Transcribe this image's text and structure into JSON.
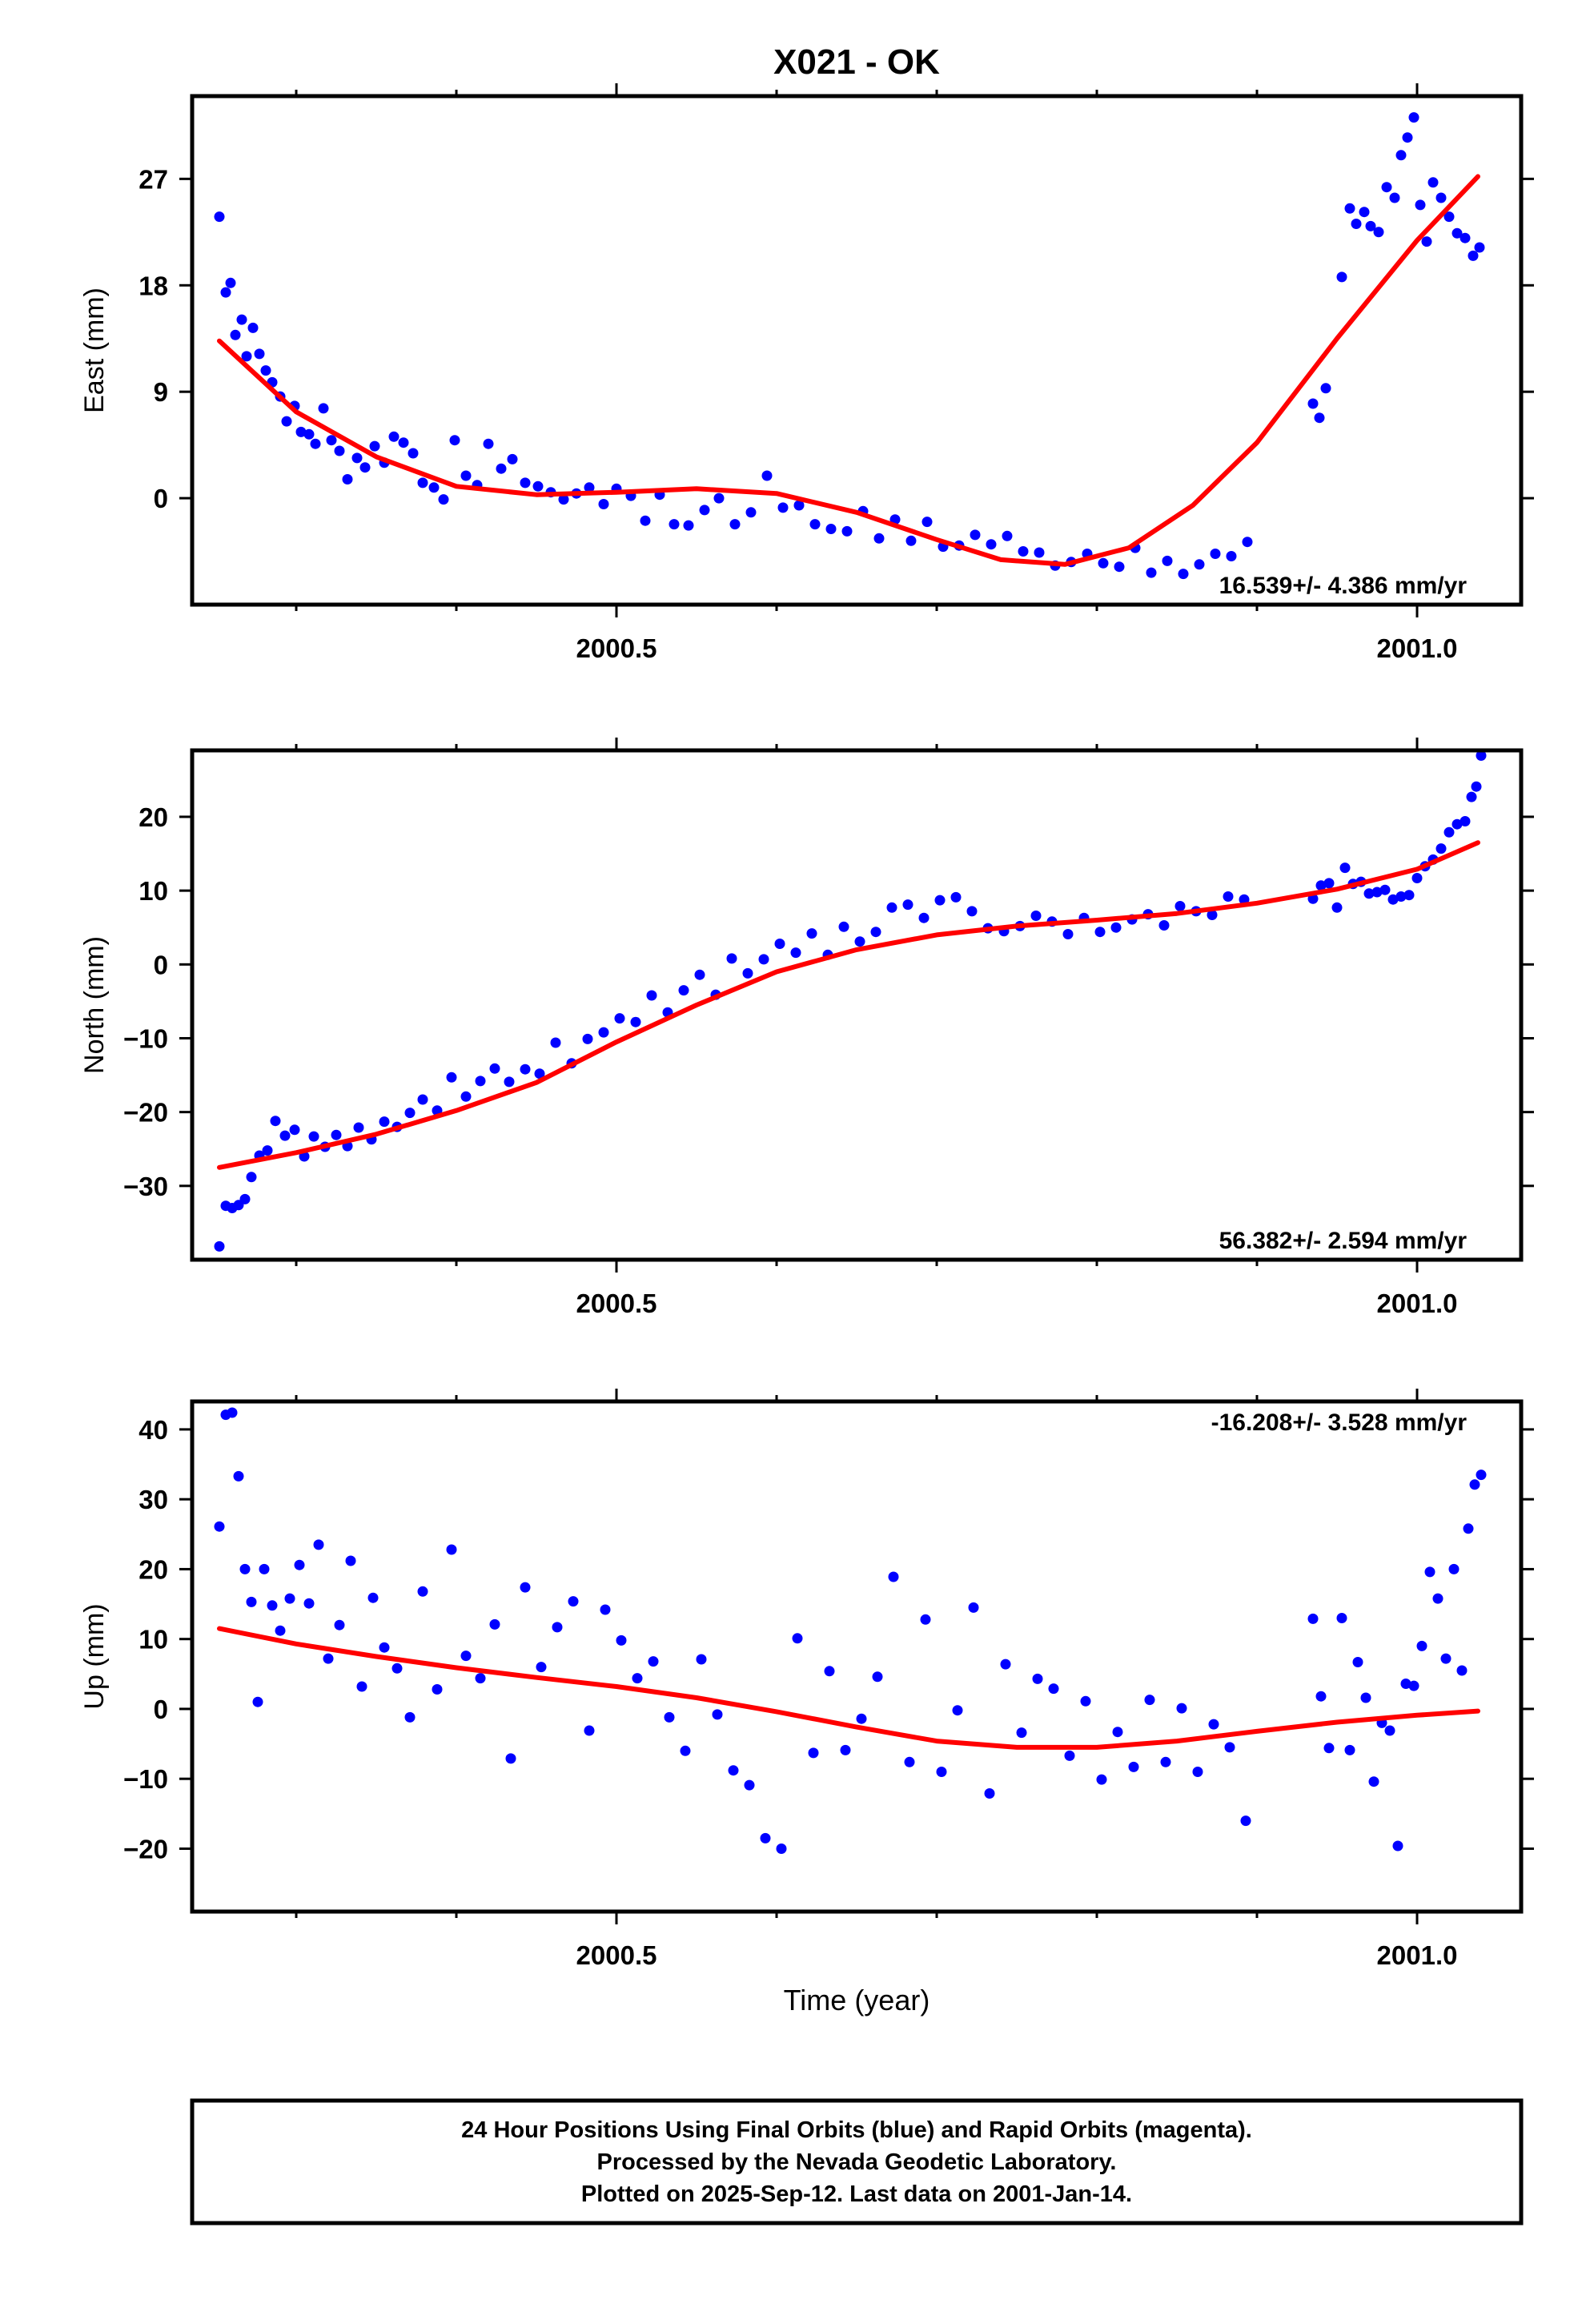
{
  "title": "X021 - OK",
  "xlabel": "Time (year)",
  "footer": [
    "24 Hour Positions Using Final Orbits (blue) and Rapid Orbits (magenta).",
    "Processed by the Nevada Geodetic Laboratory.",
    "Plotted on 2025-Sep-12. Last data on 2001-Jan-14."
  ],
  "colors": {
    "data": "#0000ff",
    "fit": "#ff0000",
    "frame": "#000000"
  },
  "chart_data": [
    {
      "type": "scatter",
      "ylabel": "East (mm)",
      "rate_label": "16.539+/- 4.386 mm/yr",
      "xlim": [
        2000.235,
        2001.065
      ],
      "ylim": [
        -9,
        34
      ],
      "xticks": [
        2000.5,
        2001.0
      ],
      "xtick_labels": [
        "2000.5",
        "2001.0"
      ],
      "yticks": [
        0,
        9,
        18,
        27
      ],
      "ytick_labels": [
        "0",
        "9",
        "18",
        "27"
      ],
      "fit": {
        "x": [
          2000.252,
          2000.3,
          2000.35,
          2000.4,
          2000.45,
          2000.5,
          2000.55,
          2000.6,
          2000.65,
          2000.7,
          2000.74,
          2000.78,
          2000.82,
          2000.86,
          2000.9,
          2000.95,
          2001.0,
          2001.038
        ],
        "y": [
          13.3,
          7.3,
          3.5,
          1.0,
          0.3,
          0.5,
          0.8,
          0.4,
          -1.2,
          -3.5,
          -5.2,
          -5.6,
          -4.2,
          -0.6,
          4.7,
          13.5,
          21.8,
          27.2
        ]
      },
      "points": {
        "x": [
          2000.252,
          2000.256,
          2000.259,
          2000.262,
          2000.266,
          2000.269,
          2000.273,
          2000.277,
          2000.281,
          2000.285,
          2000.29,
          2000.294,
          2000.299,
          2000.303,
          2000.308,
          2000.312,
          2000.317,
          2000.322,
          2000.327,
          2000.332,
          2000.338,
          2000.343,
          2000.349,
          2000.355,
          2000.361,
          2000.367,
          2000.373,
          2000.379,
          2000.386,
          2000.392,
          2000.399,
          2000.406,
          2000.413,
          2000.42,
          2000.428,
          2000.435,
          2000.443,
          2000.451,
          2000.459,
          2000.467,
          2000.475,
          2000.483,
          2000.492,
          2000.5,
          2000.509,
          2000.518,
          2000.527,
          2000.536,
          2000.545,
          2000.555,
          2000.564,
          2000.574,
          2000.584,
          2000.594,
          2000.604,
          2000.614,
          2000.624,
          2000.634,
          2000.644,
          2000.654,
          2000.664,
          2000.674,
          2000.684,
          2000.694,
          2000.704,
          2000.714,
          2000.724,
          2000.734,
          2000.744,
          2000.754,
          2000.764,
          2000.774,
          2000.784,
          2000.794,
          2000.804,
          2000.814,
          2000.824,
          2000.834,
          2000.844,
          2000.854,
          2000.864,
          2000.874,
          2000.884,
          2000.894,
          2000.935,
          2000.939,
          2000.943,
          2000.953,
          2000.958,
          2000.962,
          2000.967,
          2000.971,
          2000.976,
          2000.981,
          2000.986,
          2000.99,
          2000.994,
          2000.998,
          2001.002,
          2001.006,
          2001.01,
          2001.015,
          2001.02,
          2001.025,
          2001.03,
          2001.035,
          2001.039
        ],
        "y": [
          23.8,
          17.4,
          18.2,
          13.8,
          15.1,
          12.0,
          14.4,
          12.2,
          10.8,
          9.8,
          8.6,
          6.5,
          7.8,
          5.6,
          5.4,
          4.6,
          7.6,
          4.9,
          4.0,
          1.6,
          3.4,
          2.6,
          4.4,
          3.0,
          5.2,
          4.7,
          3.8,
          1.3,
          0.9,
          -0.1,
          4.9,
          1.9,
          1.1,
          4.6,
          2.5,
          3.3,
          1.3,
          1.0,
          0.5,
          -0.1,
          0.4,
          0.9,
          -0.5,
          0.8,
          0.2,
          -1.9,
          0.3,
          -2.2,
          -2.3,
          -1.0,
          0.0,
          -2.2,
          -1.2,
          1.9,
          -0.8,
          -0.6,
          -2.2,
          -2.6,
          -2.8,
          -1.1,
          -3.4,
          -1.8,
          -3.6,
          -2.0,
          -4.1,
          -4.0,
          -3.1,
          -3.9,
          -3.2,
          -4.5,
          -4.6,
          -5.7,
          -5.4,
          -4.7,
          -5.5,
          -5.8,
          -4.2,
          -6.3,
          -5.3,
          -6.4,
          -5.6,
          -4.7,
          -4.9,
          -3.7,
          8.0,
          6.8,
          9.3,
          18.7,
          24.5,
          23.2,
          24.2,
          23.0,
          22.5,
          26.3,
          25.4,
          29.0,
          30.5,
          32.2,
          24.8,
          21.7,
          26.7,
          25.4,
          23.8,
          22.4,
          22.0,
          20.5,
          21.2
        ]
      }
    },
    {
      "type": "scatter",
      "ylabel": "North (mm)",
      "rate_label": "56.382+/- 2.594 mm/yr",
      "xlim": [
        2000.235,
        2001.065
      ],
      "ylim": [
        -40,
        29
      ],
      "xticks": [
        2000.5,
        2001.0
      ],
      "xtick_labels": [
        "2000.5",
        "2001.0"
      ],
      "yticks": [
        -30,
        -20,
        -10,
        0,
        10,
        20
      ],
      "ytick_labels": [
        "−30",
        "−20",
        "−10",
        "0",
        "10",
        "20"
      ],
      "fit": {
        "x": [
          2000.252,
          2000.3,
          2000.35,
          2000.4,
          2000.45,
          2000.5,
          2000.55,
          2000.6,
          2000.65,
          2000.7,
          2000.75,
          2000.8,
          2000.85,
          2000.9,
          2000.95,
          2001.0,
          2001.038
        ],
        "y": [
          -27.5,
          -25.5,
          -23.0,
          -19.8,
          -16.0,
          -10.5,
          -5.5,
          -1.0,
          2.0,
          4.0,
          5.2,
          6.0,
          6.9,
          8.3,
          10.2,
          12.9,
          16.5
        ]
      },
      "points": {
        "x": [
          2000.252,
          2000.256,
          2000.26,
          2000.264,
          2000.268,
          2000.272,
          2000.277,
          2000.282,
          2000.287,
          2000.293,
          2000.299,
          2000.305,
          2000.311,
          2000.318,
          2000.325,
          2000.332,
          2000.339,
          2000.347,
          2000.355,
          2000.363,
          2000.371,
          2000.379,
          2000.388,
          2000.397,
          2000.406,
          2000.415,
          2000.424,
          2000.433,
          2000.443,
          2000.452,
          2000.462,
          2000.472,
          2000.482,
          2000.492,
          2000.502,
          2000.512,
          2000.522,
          2000.532,
          2000.542,
          2000.552,
          2000.562,
          2000.572,
          2000.582,
          2000.592,
          2000.602,
          2000.612,
          2000.622,
          2000.632,
          2000.642,
          2000.652,
          2000.662,
          2000.672,
          2000.682,
          2000.692,
          2000.702,
          2000.712,
          2000.722,
          2000.732,
          2000.742,
          2000.752,
          2000.762,
          2000.772,
          2000.782,
          2000.792,
          2000.802,
          2000.812,
          2000.822,
          2000.832,
          2000.842,
          2000.852,
          2000.862,
          2000.872,
          2000.882,
          2000.892,
          2000.935,
          2000.94,
          2000.945,
          2000.95,
          2000.955,
          2000.96,
          2000.965,
          2000.97,
          2000.975,
          2000.98,
          2000.985,
          2000.99,
          2000.995,
          2001.0,
          2001.005,
          2001.01,
          2001.015,
          2001.02,
          2001.025,
          2001.03,
          2001.034,
          2001.037,
          2001.04
        ],
        "y": [
          -38.2,
          -32.7,
          -33.0,
          -32.6,
          -31.8,
          -28.8,
          -25.9,
          -25.2,
          -21.2,
          -23.2,
          -22.4,
          -26.0,
          -23.3,
          -24.7,
          -23.1,
          -24.6,
          -22.1,
          -23.7,
          -21.3,
          -22.0,
          -20.1,
          -18.3,
          -19.8,
          -15.3,
          -17.9,
          -15.8,
          -14.1,
          -15.9,
          -14.2,
          -14.8,
          -10.6,
          -13.4,
          -10.1,
          -9.2,
          -7.3,
          -7.8,
          -4.2,
          -6.5,
          -3.5,
          -1.4,
          -4.1,
          0.8,
          -1.2,
          0.7,
          2.8,
          1.6,
          4.2,
          1.3,
          5.1,
          3.1,
          4.4,
          7.7,
          8.1,
          6.3,
          8.7,
          9.1,
          7.2,
          4.9,
          4.5,
          5.2,
          6.6,
          5.8,
          4.1,
          6.3,
          4.4,
          5.0,
          6.1,
          6.8,
          5.3,
          7.9,
          7.2,
          6.7,
          9.2,
          8.8,
          8.9,
          10.7,
          11.0,
          7.7,
          13.1,
          10.9,
          11.2,
          9.6,
          9.8,
          10.1,
          8.8,
          9.2,
          9.4,
          11.7,
          13.3,
          14.2,
          15.7,
          17.9,
          19.0,
          19.4,
          22.7,
          24.1,
          28.3
        ]
      }
    },
    {
      "type": "scatter",
      "ylabel": "Up (mm)",
      "rate_label": "-16.208+/- 3.528 mm/yr",
      "xlim": [
        2000.235,
        2001.065
      ],
      "ylim": [
        -29,
        44
      ],
      "xticks": [
        2000.5,
        2001.0
      ],
      "xtick_labels": [
        "2000.5",
        "2001.0"
      ],
      "yticks": [
        -20,
        -10,
        0,
        10,
        20,
        30,
        40
      ],
      "ytick_labels": [
        "−20",
        "−10",
        "0",
        "10",
        "20",
        "30",
        "40"
      ],
      "fit": {
        "x": [
          2000.252,
          2000.3,
          2000.35,
          2000.4,
          2000.45,
          2000.5,
          2000.55,
          2000.6,
          2000.65,
          2000.7,
          2000.75,
          2000.8,
          2000.85,
          2000.9,
          2000.95,
          2001.0,
          2001.038
        ],
        "y": [
          11.5,
          9.3,
          7.5,
          5.9,
          4.5,
          3.2,
          1.6,
          -0.4,
          -2.6,
          -4.6,
          -5.5,
          -5.5,
          -4.6,
          -3.2,
          -1.9,
          -0.9,
          -0.3
        ]
      },
      "points": {
        "x": [
          2000.252,
          2000.256,
          2000.26,
          2000.264,
          2000.268,
          2000.272,
          2000.276,
          2000.28,
          2000.285,
          2000.29,
          2000.296,
          2000.302,
          2000.308,
          2000.314,
          2000.32,
          2000.327,
          2000.334,
          2000.341,
          2000.348,
          2000.355,
          2000.363,
          2000.371,
          2000.379,
          2000.388,
          2000.397,
          2000.406,
          2000.415,
          2000.424,
          2000.434,
          2000.443,
          2000.453,
          2000.463,
          2000.473,
          2000.483,
          2000.493,
          2000.503,
          2000.513,
          2000.523,
          2000.533,
          2000.543,
          2000.553,
          2000.563,
          2000.573,
          2000.583,
          2000.593,
          2000.603,
          2000.613,
          2000.623,
          2000.633,
          2000.643,
          2000.653,
          2000.663,
          2000.673,
          2000.683,
          2000.693,
          2000.703,
          2000.713,
          2000.723,
          2000.733,
          2000.743,
          2000.753,
          2000.763,
          2000.773,
          2000.783,
          2000.793,
          2000.803,
          2000.813,
          2000.823,
          2000.833,
          2000.843,
          2000.853,
          2000.863,
          2000.873,
          2000.883,
          2000.893,
          2000.935,
          2000.94,
          2000.945,
          2000.953,
          2000.958,
          2000.963,
          2000.968,
          2000.973,
          2000.978,
          2000.983,
          2000.988,
          2000.993,
          2000.998,
          2001.003,
          2001.008,
          2001.013,
          2001.018,
          2001.023,
          2001.028,
          2001.032,
          2001.036,
          2001.04
        ],
        "y": [
          26.1,
          42.1,
          42.4,
          33.3,
          20.0,
          15.3,
          1.0,
          20.0,
          14.8,
          11.2,
          15.8,
          20.6,
          15.1,
          23.5,
          7.2,
          12.0,
          21.2,
          3.2,
          15.9,
          8.8,
          5.8,
          -1.2,
          16.8,
          2.8,
          22.8,
          7.6,
          4.4,
          12.1,
          -7.1,
          17.4,
          6.0,
          11.7,
          15.4,
          -3.1,
          14.2,
          9.8,
          4.4,
          6.8,
          -1.2,
          -6.0,
          7.1,
          -0.8,
          -8.8,
          -10.9,
          -18.5,
          -20.0,
          10.1,
          -6.3,
          5.4,
          -5.9,
          -1.4,
          4.6,
          18.9,
          -7.6,
          12.8,
          -9.0,
          -0.2,
          14.5,
          -12.1,
          6.4,
          -3.4,
          4.3,
          2.9,
          -6.7,
          1.1,
          -10.1,
          -3.3,
          -8.3,
          1.3,
          -7.6,
          0.1,
          -9.0,
          -2.2,
          -5.5,
          -16.0,
          12.9,
          1.8,
          -5.6,
          13.0,
          -5.9,
          6.7,
          1.6,
          -10.4,
          -2.0,
          -3.1,
          -19.6,
          3.6,
          3.3,
          9.0,
          19.6,
          15.8,
          7.2,
          20.0,
          5.5,
          25.8,
          32.1,
          33.5
        ]
      }
    }
  ]
}
